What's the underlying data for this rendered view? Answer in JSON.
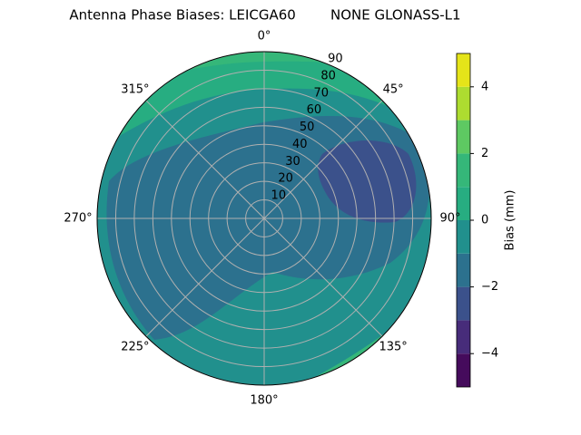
{
  "chart_data": {
    "type": "polar-contour",
    "title": "Antenna Phase Biases: LEICGA60        NONE GLONASS-L1",
    "colorbar_label": "Bias (mm)",
    "rlim": [
      0,
      90
    ],
    "rticks": [
      10,
      20,
      30,
      40,
      50,
      60,
      70,
      80,
      90
    ],
    "angle_ticks": [
      {
        "value": 0,
        "label": "0°"
      },
      {
        "value": 45,
        "label": "45°"
      },
      {
        "value": 90,
        "label": "90°"
      },
      {
        "value": 135,
        "label": "135°"
      },
      {
        "value": 180,
        "label": "180°"
      },
      {
        "value": 225,
        "label": "225°"
      },
      {
        "value": 270,
        "label": "270°"
      },
      {
        "value": 315,
        "label": "315°"
      }
    ],
    "levels": [
      -5,
      -4,
      -3,
      -2,
      -1,
      0,
      1,
      2,
      3,
      4,
      5
    ],
    "colors": [
      "#450b5c",
      "#472c7a",
      "#3b518b",
      "#2c718e",
      "#21908d",
      "#27ad81",
      "#35b779",
      "#5ec962",
      "#addc30",
      "#e5e419"
    ],
    "colorbar_lim": [
      -5,
      5
    ],
    "colorbar_ticks": [
      {
        "value": -4,
        "label": "−4"
      },
      {
        "value": -2,
        "label": "−2"
      },
      0,
      2,
      4
    ],
    "grid": true
  }
}
